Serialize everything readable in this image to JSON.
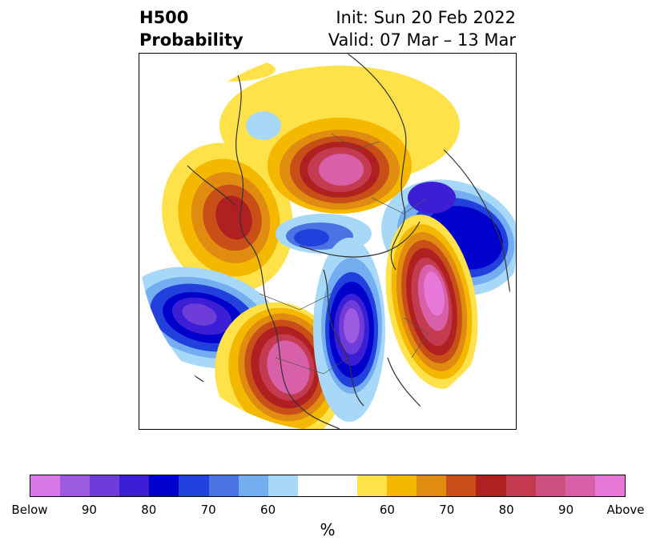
{
  "header": {
    "title_line1": "H500",
    "title_line2": "Probability",
    "init": "Init: Sun 20 Feb 2022",
    "valid": "Valid: 07 Mar – 13 Mar"
  },
  "colorbar": {
    "unit": "%",
    "colors": [
      "#d878e8",
      "#9c5ae0",
      "#6e3cd8",
      "#3c1ed4",
      "#0000cc",
      "#2240dc",
      "#4a74e4",
      "#74aef0",
      "#a8d8f8",
      "#ffffff",
      "#ffffff",
      "#ffe24a",
      "#f5b800",
      "#e08c10",
      "#c85018",
      "#b02020",
      "#c43a50",
      "#cc5080",
      "#d860a8",
      "#e878d8"
    ],
    "tick_labels": [
      "Below",
      "90",
      "80",
      "70",
      "60",
      "",
      "60",
      "70",
      "80",
      "90",
      "Above"
    ]
  },
  "legend_colors": {
    "below": "#9c5ae0",
    "above": "#e878d8",
    "neutral": "#ffffff"
  }
}
